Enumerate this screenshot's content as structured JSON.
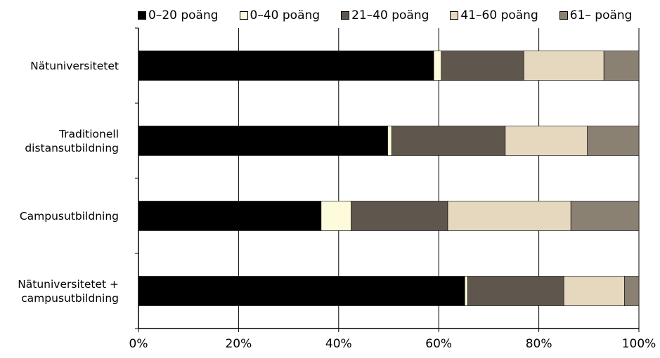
{
  "chart_data": {
    "type": "bar",
    "orientation": "horizontal",
    "stacked": "percent",
    "title": "",
    "xlabel": "",
    "ylabel": "",
    "xlim": [
      0,
      100
    ],
    "grid": true,
    "legend_position": "top",
    "categories": [
      [
        "Nätuniversitetet"
      ],
      [
        "Traditionell",
        "distansutbildning"
      ],
      [
        "Campusutbildning"
      ],
      [
        "Nätuniversitetet +",
        "campusutbildning"
      ]
    ],
    "x_ticks": [
      "0%",
      "20%",
      "40%",
      "60%",
      "80%",
      "100%"
    ],
    "series": [
      {
        "name": "0–20 poäng",
        "color": "#000000",
        "values": [
          59.0,
          49.8,
          36.5,
          65.2
        ]
      },
      {
        "name": "0–40 poäng",
        "color": "#fefbdc",
        "values": [
          1.5,
          0.8,
          6.0,
          0.6
        ]
      },
      {
        "name": "21–40 poäng",
        "color": "#5f574d",
        "values": [
          16.5,
          22.7,
          19.3,
          19.2
        ]
      },
      {
        "name": "41–60 poäng",
        "color": "#e6d7bf",
        "values": [
          16.0,
          16.4,
          24.6,
          12.1
        ]
      },
      {
        "name": "61– poäng",
        "color": "#8b8173",
        "values": [
          7.0,
          10.3,
          13.6,
          2.9
        ]
      }
    ]
  }
}
